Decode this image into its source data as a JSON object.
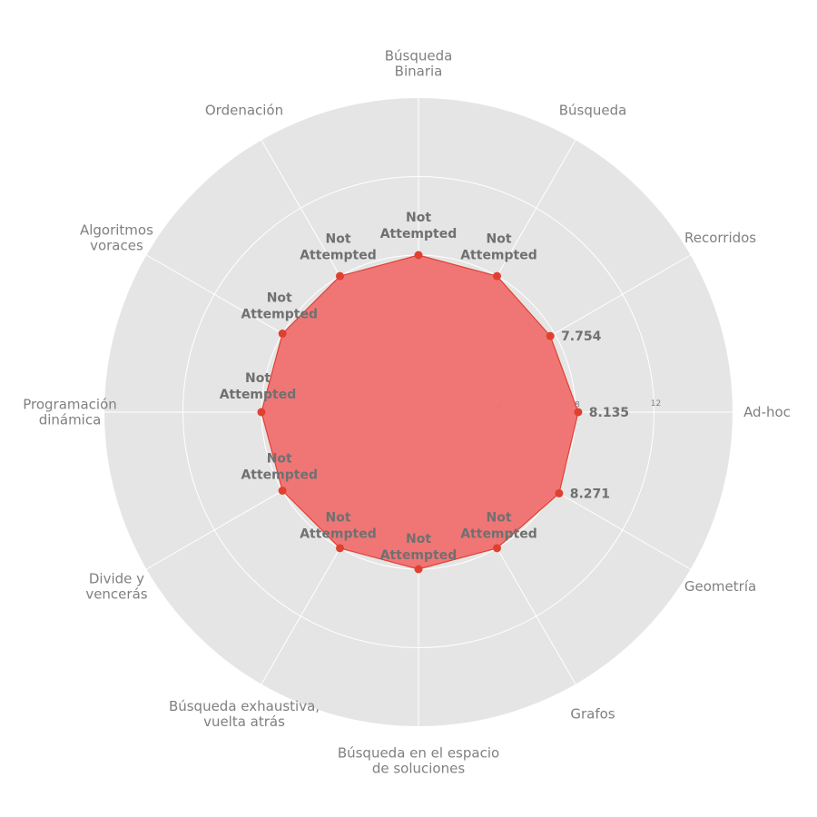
{
  "chart_data": {
    "type": "radar",
    "categories": [
      "Ad-hoc",
      "Recorridos",
      "Búsqueda",
      "Búsqueda\nBinaria",
      "Ordenación",
      "Algoritmos\nvoraces",
      "Programación\ndinámica",
      "Divide y\nvencerás",
      "Búsqueda exhaustiva,\nvuelta atrás",
      "Búsqueda en el espacio\nde soluciones",
      "Grafos",
      "Geometría"
    ],
    "values": [
      8.135,
      7.754,
      8.0,
      8.0,
      8.0,
      8.0,
      8.0,
      8.0,
      8.0,
      8.0,
      8.0,
      8.271
    ],
    "value_labels": [
      "8.135",
      "7.754",
      "Not\nAttempted",
      "Not\nAttempted",
      "Not\nAttempted",
      "Not\nAttempted",
      "Not\nAttempted",
      "Not\nAttempted",
      "Not\nAttempted",
      "Not\nAttempted",
      "Not\nAttempted",
      "8.271"
    ],
    "rmax": 16,
    "rticks": [
      4,
      8,
      12
    ],
    "grid": true,
    "colors": {
      "fill": "#f07070",
      "line": "#e04030",
      "marker": "#e04030",
      "background": "#e5e5e5",
      "grid": "#ffffff"
    }
  }
}
